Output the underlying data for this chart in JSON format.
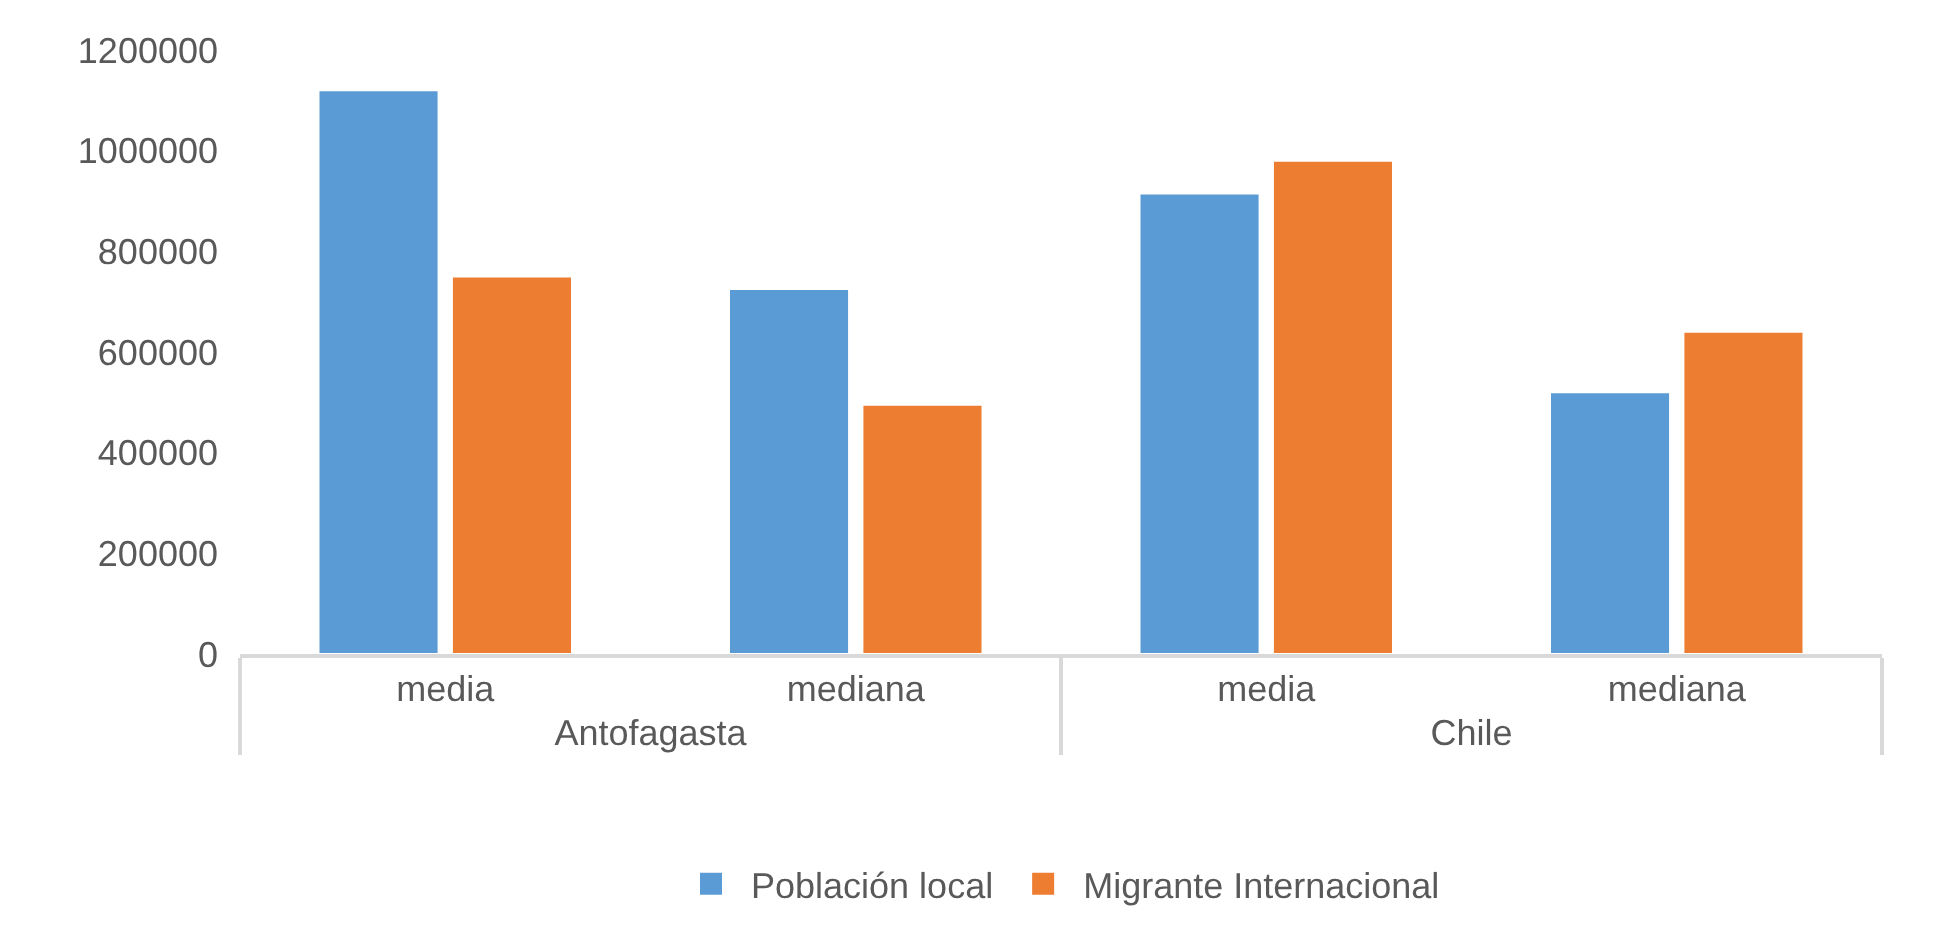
{
  "chart_data": {
    "type": "bar",
    "categories": [
      "media",
      "mediana",
      "media",
      "mediana"
    ],
    "series": [
      {
        "name": "Población local",
        "color": "#5b9bd5",
        "values": [
          1120000,
          725000,
          915000,
          520000
        ]
      },
      {
        "name": "Migrante Internacional",
        "color": "#ed7d31",
        "values": [
          750000,
          495000,
          980000,
          640000
        ]
      }
    ],
    "annotations": [
      "Antofagasta",
      "Chile"
    ],
    "ylim": [
      0,
      1200000
    ],
    "yticks": [
      0,
      200000,
      400000,
      600000,
      800000,
      1000000,
      1200000
    ],
    "grid": false,
    "legend": "bottom"
  }
}
